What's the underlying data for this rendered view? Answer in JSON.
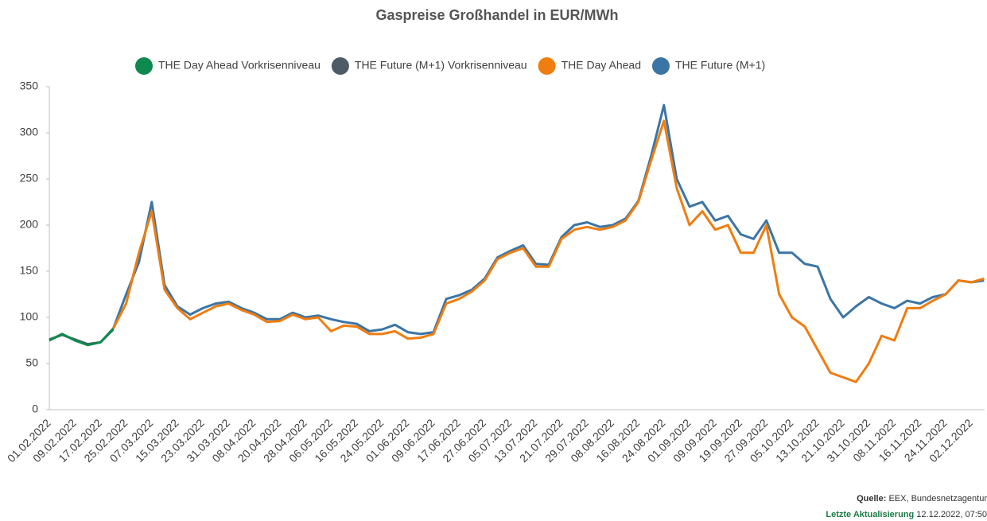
{
  "chart_data": {
    "type": "line",
    "title": "Gaspreise Großhandel in EUR/MWh",
    "categories": [
      "01.02.2022",
      null,
      "09.02.2022",
      null,
      "17.02.2022",
      null,
      "25.02.2022",
      null,
      "07.03.2022",
      null,
      "15.03.2022",
      null,
      "23.03.2022",
      null,
      "31.03.2022",
      null,
      "08.04.2022",
      null,
      "20.04.2022",
      null,
      "28.04.2022",
      null,
      "06.05.2022",
      null,
      "16.05.2022",
      null,
      "24.05.2022",
      null,
      "01.06.2022",
      null,
      "09.06.2022",
      null,
      "17.06.2022",
      null,
      "27.06.2022",
      null,
      "05.07.2022",
      null,
      "13.07.2022",
      null,
      "21.07.2022",
      null,
      "29.07.2022",
      null,
      "08.08.2022",
      null,
      "16.08.2022",
      null,
      "24.08.2022",
      null,
      "01.09.2022",
      null,
      "09.09.2022",
      null,
      "19.09.2022",
      null,
      "27.09.2022",
      null,
      "05.10.2022",
      null,
      "13.10.2022",
      null,
      "21.10.2022",
      null,
      "31.10.2022",
      null,
      "08.11.2022",
      null,
      "16.11.2022",
      null,
      "24.11.2022",
      null,
      "02.12.2022",
      null
    ],
    "series": [
      {
        "name": "THE Day Ahead Vorkrisenniveau",
        "color": "#0f8a4e",
        "values": [
          75,
          82,
          75,
          70,
          73,
          88,
          null,
          null,
          null,
          null,
          null,
          null,
          null,
          null,
          null,
          null,
          null,
          null,
          null,
          null,
          null,
          null,
          null,
          null,
          null,
          null,
          null,
          null,
          null,
          null,
          null,
          null,
          null,
          null,
          null,
          null,
          null,
          null,
          null,
          null,
          null,
          null,
          null,
          null,
          null,
          null,
          null,
          null,
          null,
          null,
          null,
          null,
          null,
          null,
          null,
          null,
          null,
          null,
          null,
          null,
          null,
          null,
          null,
          null,
          null,
          null,
          null,
          null,
          null,
          null,
          null,
          null,
          null,
          null
        ]
      },
      {
        "name": "THE Future (M+1) Vorkrisenniveau",
        "color": "#4d5b67",
        "values": [
          76,
          81,
          76,
          71,
          73,
          87,
          null,
          null,
          null,
          null,
          null,
          null,
          null,
          null,
          null,
          null,
          null,
          null,
          null,
          null,
          null,
          null,
          null,
          null,
          null,
          null,
          null,
          null,
          null,
          null,
          null,
          null,
          null,
          null,
          null,
          null,
          null,
          null,
          null,
          null,
          null,
          null,
          null,
          null,
          null,
          null,
          null,
          null,
          null,
          null,
          null,
          null,
          null,
          null,
          null,
          null,
          null,
          null,
          null,
          null,
          null,
          null,
          null,
          null,
          null,
          null,
          null,
          null,
          null,
          null,
          null,
          null,
          null,
          null
        ]
      },
      {
        "name": "THE Day Ahead",
        "color": "#ef7d10",
        "values": [
          null,
          null,
          null,
          null,
          null,
          88,
          115,
          170,
          215,
          130,
          110,
          98,
          105,
          112,
          115,
          108,
          103,
          95,
          96,
          103,
          98,
          100,
          85,
          91,
          90,
          82,
          82,
          85,
          77,
          78,
          82,
          115,
          120,
          128,
          140,
          163,
          170,
          175,
          155,
          155,
          185,
          195,
          198,
          195,
          198,
          205,
          225,
          270,
          313,
          240,
          200,
          215,
          195,
          200,
          170,
          170,
          200,
          125,
          100,
          90,
          65,
          40,
          35,
          30,
          50,
          80,
          75,
          110,
          110,
          118,
          125,
          140,
          138,
          142
        ]
      },
      {
        "name": "THE Future (M+1)",
        "color": "#3b75a5",
        "values": [
          null,
          null,
          null,
          null,
          null,
          88,
          125,
          160,
          225,
          135,
          112,
          103,
          110,
          115,
          117,
          110,
          105,
          98,
          98,
          105,
          100,
          102,
          98,
          95,
          93,
          85,
          87,
          92,
          84,
          82,
          84,
          120,
          124,
          130,
          142,
          165,
          172,
          178,
          158,
          157,
          187,
          200,
          203,
          198,
          200,
          207,
          226,
          275,
          330,
          250,
          220,
          225,
          205,
          210,
          190,
          185,
          205,
          170,
          170,
          158,
          155,
          120,
          100,
          112,
          122,
          115,
          110,
          118,
          115,
          122,
          125,
          140,
          138,
          140
        ]
      }
    ],
    "ylim": [
      0,
      350
    ],
    "yticks": [
      0,
      50,
      100,
      150,
      200,
      250,
      300,
      350
    ],
    "legend": "top",
    "source": {
      "label": "Quelle:",
      "text": "EEX, Bundesnetzagentur"
    },
    "updated": {
      "label": "Letzte Aktualisierung",
      "text": "12.12.2022, 07:50"
    }
  }
}
